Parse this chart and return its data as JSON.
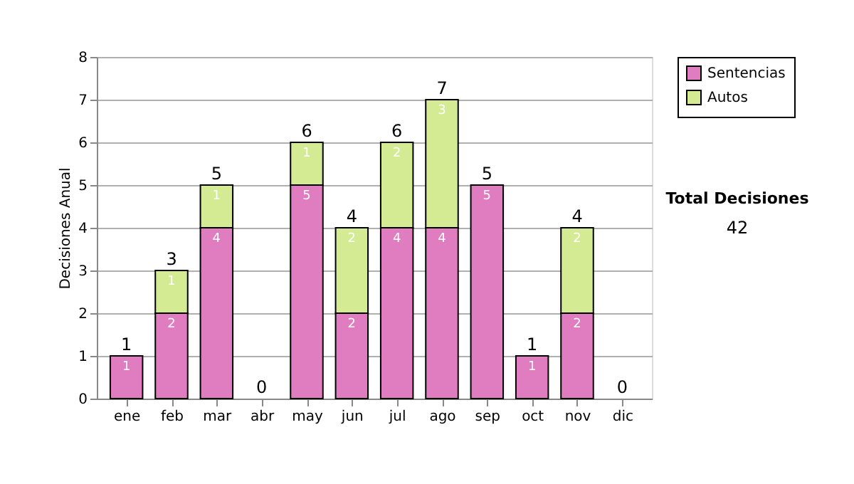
{
  "chart_data": {
    "type": "bar",
    "stacked": true,
    "ylabel": "Decisiones Anual",
    "categories": [
      "ene",
      "feb",
      "mar",
      "abr",
      "may",
      "jun",
      "jul",
      "ago",
      "sep",
      "oct",
      "nov",
      "dic"
    ],
    "series": [
      {
        "name": "Sentencias",
        "color": "#e07cc0",
        "values": [
          1,
          2,
          4,
          0,
          5,
          2,
          4,
          4,
          5,
          1,
          2,
          0
        ],
        "value_labels": [
          "1",
          "2",
          "4",
          null,
          "5",
          "2",
          "4",
          "4",
          "5",
          "1",
          "2",
          null
        ]
      },
      {
        "name": "Autos",
        "color": "#d4eb94",
        "values": [
          0,
          1,
          1,
          0,
          1,
          2,
          2,
          3,
          0,
          0,
          2,
          0
        ],
        "value_labels": [
          null,
          "1",
          "1",
          null,
          "1",
          "2",
          "2",
          "3",
          null,
          null,
          "2",
          null
        ]
      }
    ],
    "totals": [
      "1",
      "3",
      "5",
      "0",
      "6",
      "4",
      "6",
      "7",
      "5",
      "1",
      "4",
      "0"
    ],
    "ylim": [
      0,
      8
    ],
    "yticks": [
      0,
      1,
      2,
      3,
      4,
      5,
      6,
      7,
      8
    ],
    "grid": "y",
    "legend": "right",
    "annotations": [
      "Total Decisiones",
      "42"
    ]
  }
}
